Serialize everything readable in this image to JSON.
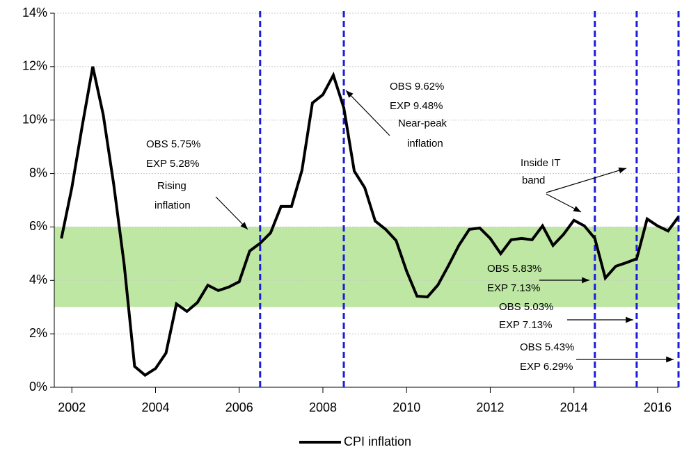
{
  "chart_data": {
    "type": "line",
    "x": [
      2001.75,
      2002,
      2002.25,
      2002.5,
      2002.75,
      2003,
      2003.25,
      2003.5,
      2003.75,
      2004,
      2004.25,
      2004.5,
      2004.75,
      2005,
      2005.25,
      2005.5,
      2005.75,
      2006,
      2006.25,
      2006.5,
      2006.75,
      2007,
      2007.25,
      2007.5,
      2007.75,
      2008,
      2008.25,
      2008.5,
      2008.75,
      2009,
      2009.25,
      2009.5,
      2009.75,
      2010,
      2010.25,
      2010.5,
      2010.75,
      2011,
      2011.25,
      2011.5,
      2011.75,
      2012,
      2012.25,
      2012.5,
      2012.75,
      2013,
      2013.25,
      2013.5,
      2013.75,
      2014,
      2014.25,
      2014.5,
      2014.75,
      2015,
      2015.25,
      2015.5,
      2015.75,
      2016,
      2016.25,
      2016.5
    ],
    "series": [
      {
        "name": "CPI inflation",
        "color": "#000000",
        "values": [
          5.57,
          7.47,
          9.8,
          12.0,
          10.2,
          7.6,
          4.6,
          0.78,
          0.45,
          0.7,
          1.28,
          3.12,
          2.84,
          3.17,
          3.82,
          3.62,
          3.75,
          3.95,
          5.1,
          5.39,
          5.78,
          6.77,
          6.77,
          8.12,
          10.64,
          10.95,
          11.68,
          10.46,
          8.09,
          7.47,
          6.22,
          5.91,
          5.49,
          4.35,
          3.41,
          3.38,
          3.83,
          4.55,
          5.31,
          5.91,
          5.96,
          5.57,
          5.0,
          5.52,
          5.57,
          5.52,
          6.04,
          5.31,
          5.72,
          6.25,
          6.04,
          5.57,
          4.09,
          4.53,
          4.66,
          4.81,
          6.3,
          6.04,
          5.85,
          6.38
        ]
      }
    ],
    "xlim": [
      2001.58,
      2016.5
    ],
    "xticks": [
      2002,
      2004,
      2006,
      2008,
      2010,
      2012,
      2014,
      2016
    ],
    "ylim": [
      0,
      14
    ],
    "yticks": [
      {
        "value": 0,
        "label": "0%"
      },
      {
        "value": 2,
        "label": "2%"
      },
      {
        "value": 4,
        "label": "4%"
      },
      {
        "value": 6,
        "label": "6%"
      },
      {
        "value": 8,
        "label": "8%"
      },
      {
        "value": 10,
        "label": "10%"
      },
      {
        "value": 12,
        "label": "12%"
      },
      {
        "value": 14,
        "label": "14%"
      }
    ],
    "grid": true,
    "band": {
      "range": [
        3,
        6
      ],
      "color": "#bde7a3"
    },
    "vlines": {
      "x": [
        2006.5,
        2008.5,
        2014.5,
        2015.5,
        2016.5
      ],
      "color": "#1c1cdc"
    },
    "annotations": [
      "OBS 5.75%",
      "EXP 5.28%",
      "Rising",
      "inflation",
      "OBS 9.62%",
      "EXP 9.48%",
      "Near-peak",
      "inflation",
      "Inside IT",
      "band",
      "OBS 5.83%",
      "EXP 7.13%",
      "OBS 5.03%",
      "EXP 7.13%",
      "OBS 5.43%",
      "EXP 6.29%"
    ],
    "annotation_colors": [
      "#1c1cdc",
      "#1c1cdc",
      "#000000",
      "#000000",
      "#1c1cdc",
      "#1c1cdc",
      "#000000",
      "#000000",
      "#000000",
      "#000000",
      "#1c1cdc",
      "#1c1cdc",
      "#1c1cdc",
      "#1c1cdc",
      "#1c1cdc",
      "#1c1cdc"
    ],
    "legend": "bottom"
  }
}
